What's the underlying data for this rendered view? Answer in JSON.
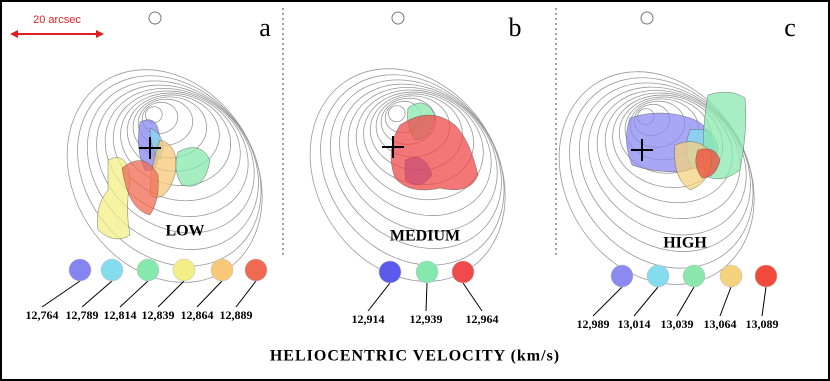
{
  "scale_label": "20 arcsec",
  "footer": "HELIOCENTRIC VELOCITY (km/s)",
  "panels": [
    {
      "letter": "a",
      "label": "LOW",
      "channels": [
        {
          "label": "12,764",
          "color": "#8585f2"
        },
        {
          "label": "12,789",
          "color": "#86dcef"
        },
        {
          "label": "12,814",
          "color": "#86e8ac"
        },
        {
          "label": "12,839",
          "color": "#f3ef86"
        },
        {
          "label": "12,864",
          "color": "#f6c878"
        },
        {
          "label": "12,889",
          "color": "#f06a52"
        }
      ]
    },
    {
      "letter": "b",
      "label": "MEDIUM",
      "channels": [
        {
          "label": "12,914",
          "color": "#5a5aec"
        },
        {
          "label": "12,939",
          "color": "#86e8ac"
        },
        {
          "label": "12,964",
          "color": "#f04a4a"
        }
      ]
    },
    {
      "letter": "c",
      "label": "HIGH",
      "channels": [
        {
          "label": "12,989",
          "color": "#8a8af2"
        },
        {
          "label": "13,014",
          "color": "#86dcef"
        },
        {
          "label": "13,039",
          "color": "#8ae8ae"
        },
        {
          "label": "13,064",
          "color": "#f4d27e"
        },
        {
          "label": "13,089",
          "color": "#f04a3a"
        }
      ]
    }
  ]
}
